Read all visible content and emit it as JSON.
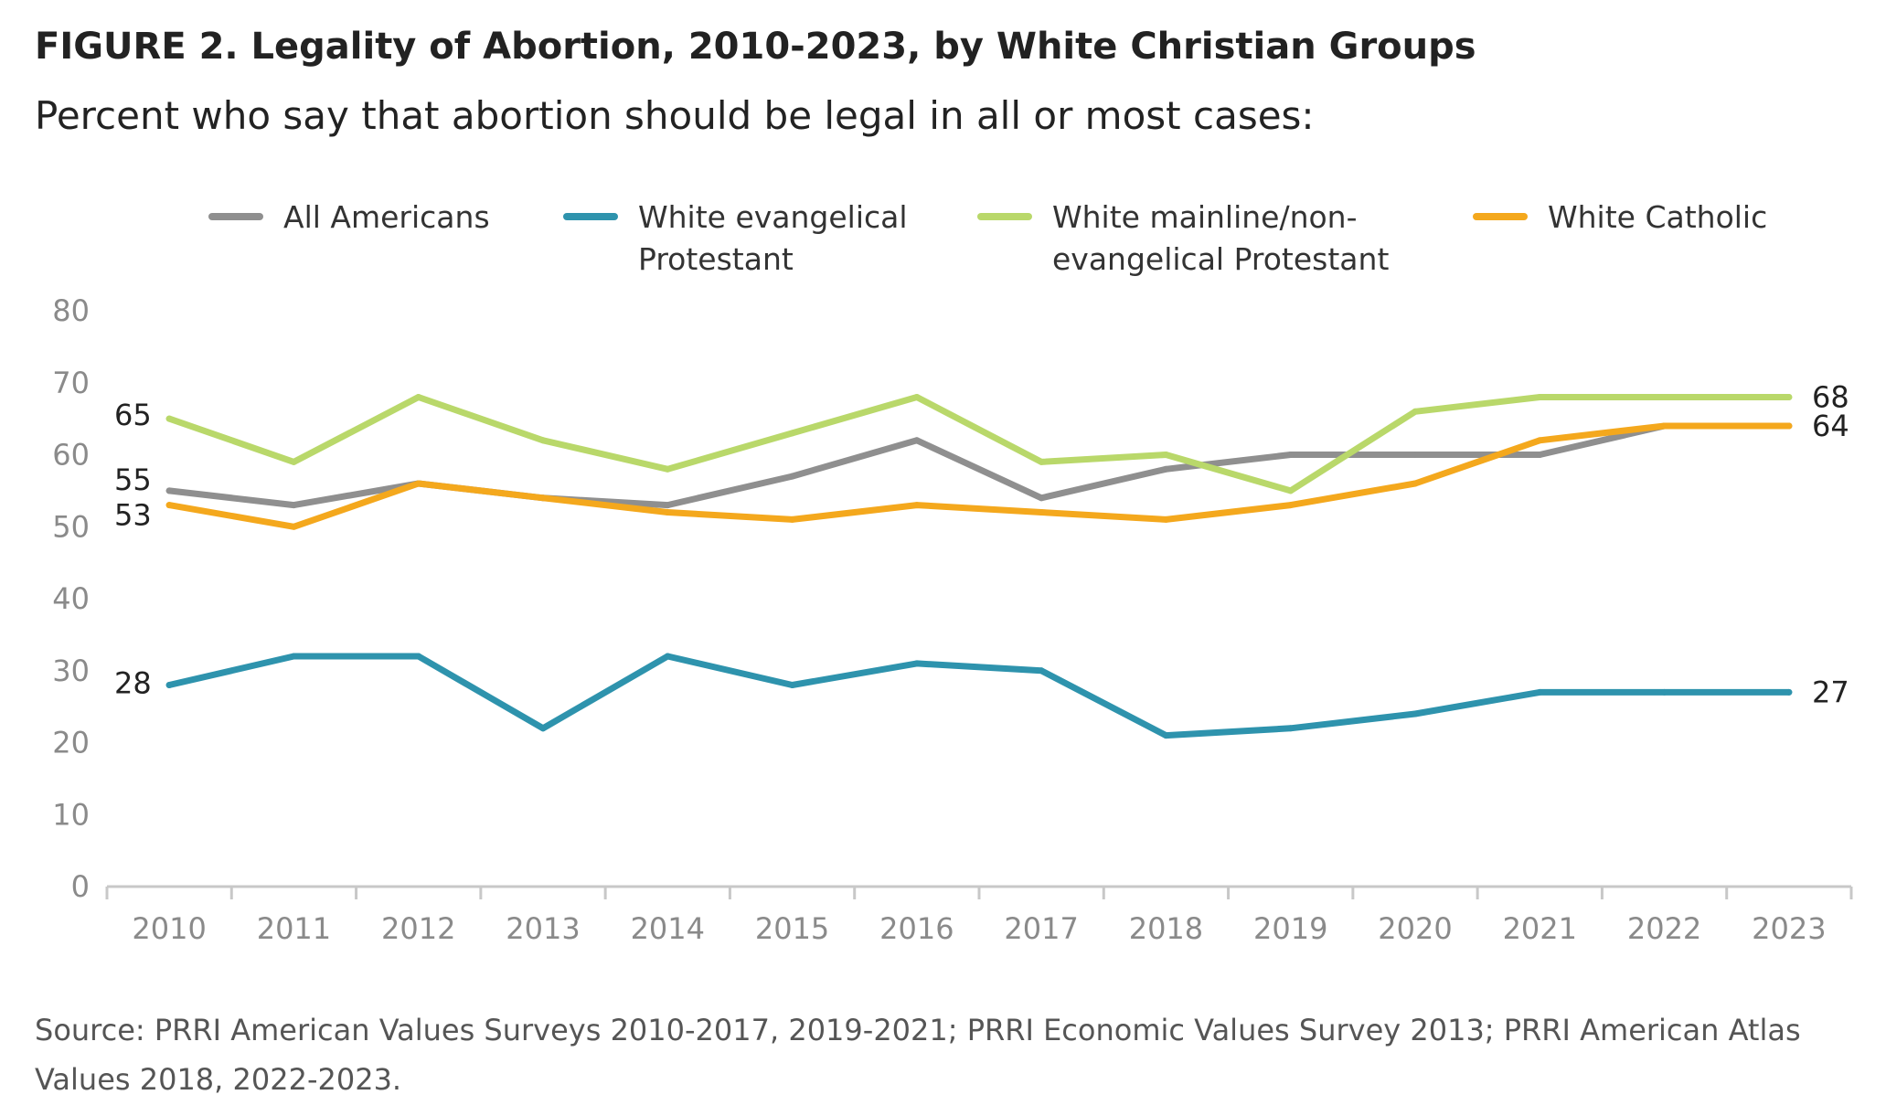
{
  "title": "FIGURE 2.  Legality of Abortion, 2010-2023, by White Christian Groups",
  "subtitle": "Percent who say that abortion should be legal in all or most cases:",
  "source": "Source: PRRI American Values Surveys 2010-2017, 2019-2021; PRRI Economic Values Survey 2013; PRRI American Atlas Values 2018, 2022-2023.",
  "chart_data": {
    "type": "line",
    "x": [
      "2010",
      "2011",
      "2012",
      "2013",
      "2014",
      "2015",
      "2016",
      "2017",
      "2018",
      "2019",
      "2020",
      "2021",
      "2022",
      "2023"
    ],
    "ylim": [
      0,
      80
    ],
    "yticks": [
      0,
      10,
      20,
      30,
      40,
      50,
      60,
      70,
      80
    ],
    "grid": false,
    "legend_position": "top",
    "series": [
      {
        "key": "all",
        "name_lines": [
          "All Americans"
        ],
        "color": "#8f8f8f",
        "values": [
          55,
          53,
          56,
          54,
          53,
          57,
          62,
          54,
          58,
          60,
          60,
          60,
          64,
          64
        ],
        "start_label": "55",
        "end_label": ""
      },
      {
        "key": "evangelical",
        "name_lines": [
          "White evangelical",
          "Protestant"
        ],
        "color": "#2e93ad",
        "values": [
          28,
          32,
          32,
          22,
          32,
          28,
          31,
          30,
          21,
          22,
          24,
          27,
          27,
          27
        ],
        "start_label": "28",
        "end_label": "27"
      },
      {
        "key": "mainline",
        "name_lines": [
          "White mainline/non-",
          "evangelical Protestant"
        ],
        "color": "#b9d86a",
        "values": [
          65,
          59,
          68,
          62,
          58,
          63,
          68,
          59,
          60,
          55,
          66,
          68,
          68,
          68
        ],
        "start_label": "65",
        "end_label": "68"
      },
      {
        "key": "catholic",
        "name_lines": [
          "White Catholic"
        ],
        "color": "#f4a81d",
        "values": [
          53,
          50,
          56,
          54,
          52,
          51,
          53,
          52,
          51,
          53,
          56,
          62,
          64,
          64
        ],
        "start_label": "53",
        "end_label": "64"
      }
    ]
  }
}
